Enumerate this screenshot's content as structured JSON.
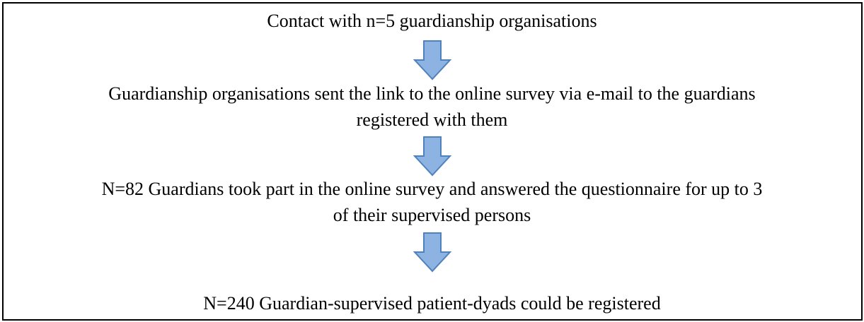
{
  "steps": [
    {
      "lines": [
        "Contact with n=5 guardianship organisations"
      ]
    },
    {
      "lines": [
        "Guardianship organisations sent the link to the online survey via e-mail to the guardians",
        "registered with them"
      ]
    },
    {
      "lines": [
        "N=82 Guardians took part in the online survey and answered the questionnaire for up to 3",
        "of their supervised persons"
      ]
    },
    {
      "lines": [
        "N=240 Guardian-supervised patient-dyads could be registered"
      ]
    }
  ]
}
